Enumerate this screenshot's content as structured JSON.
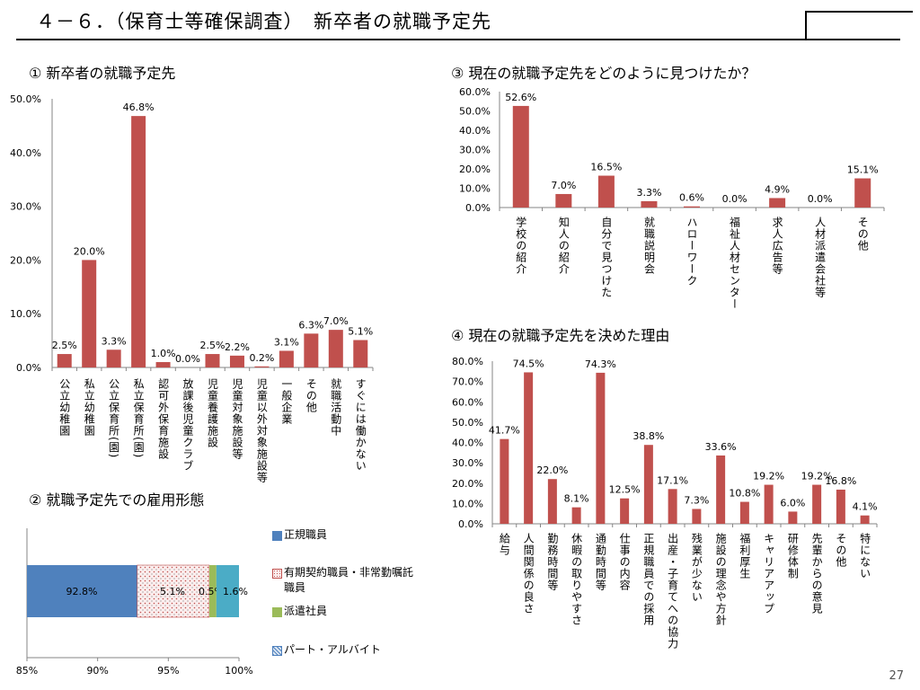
{
  "header": {
    "title": "４－６．（保育士等確保調査）　新卒者の就職予定先"
  },
  "page_number": "27",
  "sections": {
    "s1": "① 新卒者の就職予定先",
    "s2": "② 就職予定先での雇用形態",
    "s3": "③ 現在の就職予定先をどのように見つけたか？",
    "s4": "④ 現在の就職予定先を決めた理由"
  },
  "colors": {
    "bar": "#c0504d",
    "regular": "#4f81bd",
    "contract": "#f2dcdb",
    "dispatch": "#9bbb59",
    "parttime": "#4bacc6"
  },
  "chart_data": [
    {
      "id": "c1",
      "type": "bar",
      "categories": [
        "公立幼稚園",
        "私立幼稚園",
        "公立保育所(園)",
        "私立保育所(園)",
        "認可外保育施設",
        "放課後児童クラブ",
        "児童養護施設",
        "児童対象施設等",
        "児童以外対象施設等",
        "一般企業",
        "その他",
        "就職活動中",
        "すぐには働かない"
      ],
      "values": [
        2.5,
        20.0,
        3.3,
        46.8,
        1.0,
        0.0,
        2.5,
        2.2,
        0.2,
        3.1,
        6.3,
        7.0,
        5.1
      ],
      "labels": [
        "2.5%",
        "20.0%",
        "3.3%",
        "46.8%",
        "1.0%",
        "0.0%",
        "2.5%",
        "2.2%",
        "0.2%",
        "3.1%",
        "6.3%",
        "7.0%",
        "5.1%"
      ],
      "ylim": [
        0,
        50
      ],
      "yticks": [
        "0.0%",
        "10.0%",
        "20.0%",
        "30.0%",
        "40.0%",
        "50.0%"
      ]
    },
    {
      "id": "c2",
      "type": "bar",
      "orientation": "horizontal-stacked",
      "series": [
        {
          "name": "正規職員",
          "value": 92.8,
          "label": "92.8%"
        },
        {
          "name": "有期契約職員・非常勤嘱託職員",
          "value": 5.1,
          "label": "5.1%"
        },
        {
          "name": "派遣社員",
          "value": 0.5,
          "label": "0.5%"
        },
        {
          "name": "パート・アルバイト",
          "value": 1.6,
          "label": "1.6%"
        }
      ],
      "xlim": [
        85,
        100
      ],
      "xticks": [
        "85%",
        "90%",
        "95%",
        "100%"
      ]
    },
    {
      "id": "c3",
      "type": "bar",
      "categories": [
        "学校の紹介",
        "知人の紹介",
        "自分で見つけた",
        "就職説明会",
        "ハローワーク",
        "福祉人材センター",
        "求人広告等",
        "人材派遣会社等",
        "その他"
      ],
      "values": [
        52.6,
        7.0,
        16.5,
        3.3,
        0.6,
        0.0,
        4.9,
        0.0,
        15.1
      ],
      "labels": [
        "52.6%",
        "7.0%",
        "16.5%",
        "3.3%",
        "0.6%",
        "0.0%",
        "4.9%",
        "0.0%",
        "15.1%"
      ],
      "ylim": [
        0,
        60
      ],
      "yticks": [
        "0.0%",
        "10.0%",
        "20.0%",
        "30.0%",
        "40.0%",
        "50.0%",
        "60.0%"
      ]
    },
    {
      "id": "c4",
      "type": "bar",
      "categories": [
        "給与",
        "人間関係の良さ",
        "勤務時間等",
        "休暇の取りやすさ",
        "通勤時間等",
        "仕事の内容",
        "正規職員での採用",
        "出産・子育てへの協力",
        "残業が少ない",
        "施設の理念や方針",
        "福利厚生",
        "キャリアアップ",
        "研修体制",
        "先輩からの意見",
        "その他",
        "特にない"
      ],
      "values": [
        41.7,
        74.5,
        22.0,
        8.1,
        74.3,
        12.5,
        38.8,
        17.1,
        7.3,
        33.6,
        10.8,
        19.2,
        6.0,
        19.2,
        16.8,
        4.1
      ],
      "labels": [
        "41.7%",
        "74.5%",
        "22.0%",
        "8.1%",
        "74.3%",
        "12.5%",
        "38.8%",
        "17.1%",
        "7.3%",
        "33.6%",
        "10.8%",
        "19.2%",
        "6.0%",
        "19.2%",
        "16.8%",
        "4.1%"
      ],
      "ylim": [
        0,
        80
      ],
      "yticks": [
        "0.0%",
        "10.0%",
        "20.0%",
        "30.0%",
        "40.0%",
        "50.0%",
        "60.0%",
        "70.0%",
        "80.0%"
      ]
    }
  ]
}
